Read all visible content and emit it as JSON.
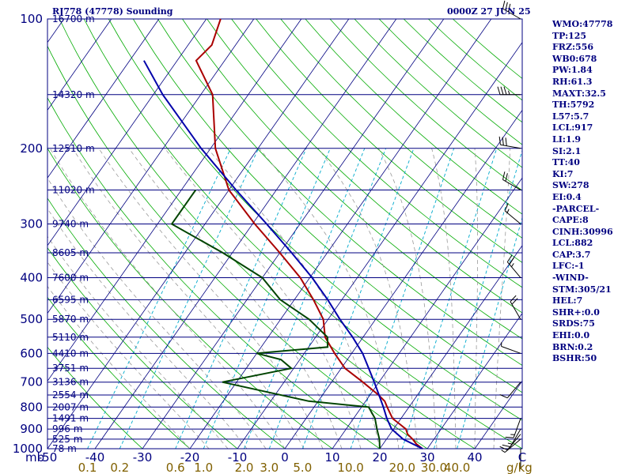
{
  "header": {
    "station": "RJ778 (47778) Sounding",
    "valid_time": "0000Z 27 JUN 25"
  },
  "indices": [
    "WMO:47778",
    "TP:125",
    "FRZ:556",
    "WB0:678",
    "PW:1.84",
    "RH:61.3",
    "MAXT:32.5",
    "TH:5792",
    "L57:5.7",
    "LCL:917",
    "LI:1.9",
    "SI:2.1",
    "TT:40",
    "KI:7",
    "SW:278",
    "EI:0.4",
    "-PARCEL-",
    "CAPE:8",
    "CINH:30996",
    "LCL:882",
    "CAP:3.7",
    "LFC:-1",
    "-WIND-",
    "STM:305/21",
    "HEL:7",
    "SHR+:0.0",
    "SRDS:75",
    "EHI:0.0",
    "BRN:0.2",
    "BSHR:50"
  ],
  "colors": {
    "isobar": "#000080",
    "isotherm": "#000080",
    "dry_adiabat": "#00aa00",
    "moist_adiabat": "#999999",
    "mixing_ratio": "#00aacc",
    "temperature": "#aa0000",
    "dewpoint": "#004400",
    "parcel": "#0000aa",
    "axis_text_temp": "#000080",
    "axis_text_mixing": "#806000",
    "height_text": "#000080"
  },
  "chart_data": {
    "type": "line",
    "diagram": "skew-T log-P",
    "y_axis": {
      "unit": "mb",
      "scale": "log",
      "range": [
        1000,
        100
      ],
      "ticks": [
        100,
        200,
        300,
        400,
        500,
        600,
        700,
        800,
        900,
        1000
      ]
    },
    "x_axis": {
      "unit_label": "mb",
      "temperature_ticks": [
        "-50",
        "-40",
        "-30",
        "-20",
        "-10",
        "0",
        "10",
        "20",
        "30",
        "40",
        "C"
      ],
      "range_c_at_1000mb": [
        -50,
        50
      ]
    },
    "mixing_ratio_axis": {
      "unit": "g/kg",
      "ticks": [
        "0.1",
        "0.2",
        "0.6",
        "1.0",
        "2.0",
        "3.0",
        "5.0",
        "10.0",
        "20.0",
        "30.0",
        "40.0"
      ]
    },
    "height_labels": [
      {
        "p": 100,
        "label": "16700 m"
      },
      {
        "p": 150,
        "label": "14320 m"
      },
      {
        "p": 200,
        "label": "12510 m"
      },
      {
        "p": 250,
        "label": "11020 m"
      },
      {
        "p": 300,
        "label": "9740 m"
      },
      {
        "p": 350,
        "label": "8605 m"
      },
      {
        "p": 400,
        "label": "7600 m"
      },
      {
        "p": 450,
        "label": "6595 m"
      },
      {
        "p": 500,
        "label": "5870 m"
      },
      {
        "p": 550,
        "label": "5110 m"
      },
      {
        "p": 600,
        "label": "4410 m"
      },
      {
        "p": 650,
        "label": "3751 m"
      },
      {
        "p": 700,
        "label": "3136 m"
      },
      {
        "p": 750,
        "label": "2554 m"
      },
      {
        "p": 800,
        "label": "2007 m"
      },
      {
        "p": 850,
        "label": "1491 m"
      },
      {
        "p": 900,
        "label": "996 m"
      },
      {
        "p": 950,
        "label": "525 m"
      },
      {
        "p": 1000,
        "label": "78 m"
      }
    ],
    "series": [
      {
        "name": "Temperature",
        "points": [
          {
            "p": 1000,
            "t": 29
          },
          {
            "p": 975,
            "t": 27
          },
          {
            "p": 950,
            "t": 25.5
          },
          {
            "p": 925,
            "t": 23.7
          },
          {
            "p": 900,
            "t": 22.6
          },
          {
            "p": 850,
            "t": 18.2
          },
          {
            "p": 800,
            "t": 15.4
          },
          {
            "p": 775,
            "t": 14
          },
          {
            "p": 750,
            "t": 11.8
          },
          {
            "p": 700,
            "t": 6.6
          },
          {
            "p": 650,
            "t": 0.8
          },
          {
            "p": 600,
            "t": -3.6
          },
          {
            "p": 550,
            "t": -8
          },
          {
            "p": 500,
            "t": -11
          },
          {
            "p": 450,
            "t": -16
          },
          {
            "p": 400,
            "t": -22
          },
          {
            "p": 350,
            "t": -30
          },
          {
            "p": 300,
            "t": -39.5
          },
          {
            "p": 250,
            "t": -50
          },
          {
            "p": 200,
            "t": -59
          },
          {
            "p": 150,
            "t": -67.5
          },
          {
            "p": 125,
            "t": -76
          },
          {
            "p": 115,
            "t": -75
          },
          {
            "p": 100,
            "t": -77
          }
        ]
      },
      {
        "name": "Dewpoint",
        "points": [
          {
            "p": 1000,
            "t": 20
          },
          {
            "p": 950,
            "t": 18.5
          },
          {
            "p": 900,
            "t": 16.5
          },
          {
            "p": 850,
            "t": 14.5
          },
          {
            "p": 800,
            "t": 11.5
          },
          {
            "p": 775,
            "t": -2
          },
          {
            "p": 700,
            "t": -23
          },
          {
            "p": 650,
            "t": -10.5
          },
          {
            "p": 620,
            "t": -14
          },
          {
            "p": 600,
            "t": -20
          },
          {
            "p": 580,
            "t": -6
          },
          {
            "p": 550,
            "t": -7.5
          },
          {
            "p": 500,
            "t": -14
          },
          {
            "p": 450,
            "t": -23
          },
          {
            "p": 400,
            "t": -30
          },
          {
            "p": 350,
            "t": -42
          },
          {
            "p": 300,
            "t": -57
          },
          {
            "p": 260,
            "t": -57
          },
          {
            "p": 250,
            "t": -57
          }
        ]
      },
      {
        "name": "Parcel",
        "points": [
          {
            "p": 1000,
            "t": 29
          },
          {
            "p": 950,
            "t": 23.5
          },
          {
            "p": 900,
            "t": 19.6
          },
          {
            "p": 850,
            "t": 17
          },
          {
            "p": 800,
            "t": 14.6
          },
          {
            "p": 750,
            "t": 11.9
          },
          {
            "p": 700,
            "t": 9
          },
          {
            "p": 650,
            "t": 5.8
          },
          {
            "p": 600,
            "t": 2.3
          },
          {
            "p": 550,
            "t": -2.2
          },
          {
            "p": 500,
            "t": -7.5
          },
          {
            "p": 450,
            "t": -13
          },
          {
            "p": 400,
            "t": -19.5
          },
          {
            "p": 350,
            "t": -27.5
          },
          {
            "p": 300,
            "t": -37
          },
          {
            "p": 250,
            "t": -48.5
          },
          {
            "p": 200,
            "t": -62
          },
          {
            "p": 150,
            "t": -78
          },
          {
            "p": 125,
            "t": -87
          }
        ]
      }
    ],
    "wind_barbs": [
      {
        "p": 100,
        "dir": 300,
        "spd": 30
      },
      {
        "p": 150,
        "dir": 270,
        "spd": 35
      },
      {
        "p": 200,
        "dir": 280,
        "spd": 30
      },
      {
        "p": 250,
        "dir": 300,
        "spd": 20
      },
      {
        "p": 300,
        "dir": 310,
        "spd": 15
      },
      {
        "p": 400,
        "dir": 320,
        "spd": 25
      },
      {
        "p": 500,
        "dir": 330,
        "spd": 20
      },
      {
        "p": 600,
        "dir": 290,
        "spd": 5
      },
      {
        "p": 700,
        "dir": 220,
        "spd": 10
      },
      {
        "p": 850,
        "dir": 200,
        "spd": 15
      },
      {
        "p": 900,
        "dir": 210,
        "spd": 15
      },
      {
        "p": 925,
        "dir": 220,
        "spd": 10
      },
      {
        "p": 950,
        "dir": 230,
        "spd": 5
      },
      {
        "p": 1000,
        "dir": 180,
        "spd": 3
      }
    ]
  }
}
